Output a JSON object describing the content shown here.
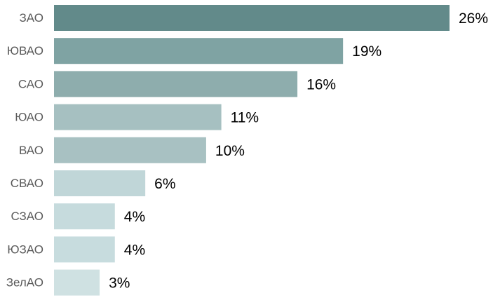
{
  "chart_data": {
    "type": "bar",
    "orientation": "horizontal",
    "categories": [
      "ЗАО",
      "ЮВАО",
      "САО",
      "ЮАО",
      "ВАО",
      "СВАО",
      "СЗАО",
      "ЮЗАО",
      "ЗелАО"
    ],
    "values": [
      26,
      19,
      16,
      11,
      10,
      6,
      4,
      4,
      3
    ],
    "value_labels": [
      "26%",
      "19%",
      "16%",
      "11%",
      "10%",
      "6%",
      "4%",
      "4%",
      "3%"
    ],
    "bar_colors": [
      "#628a8a",
      "#7fa3a3",
      "#8eadad",
      "#a6c0c1",
      "#a8c1c2",
      "#c0d6d8",
      "#c6dbdd",
      "#c7dcde",
      "#cfe1e2"
    ],
    "xlim": [
      0,
      26
    ],
    "grid": false,
    "legend": "none"
  }
}
